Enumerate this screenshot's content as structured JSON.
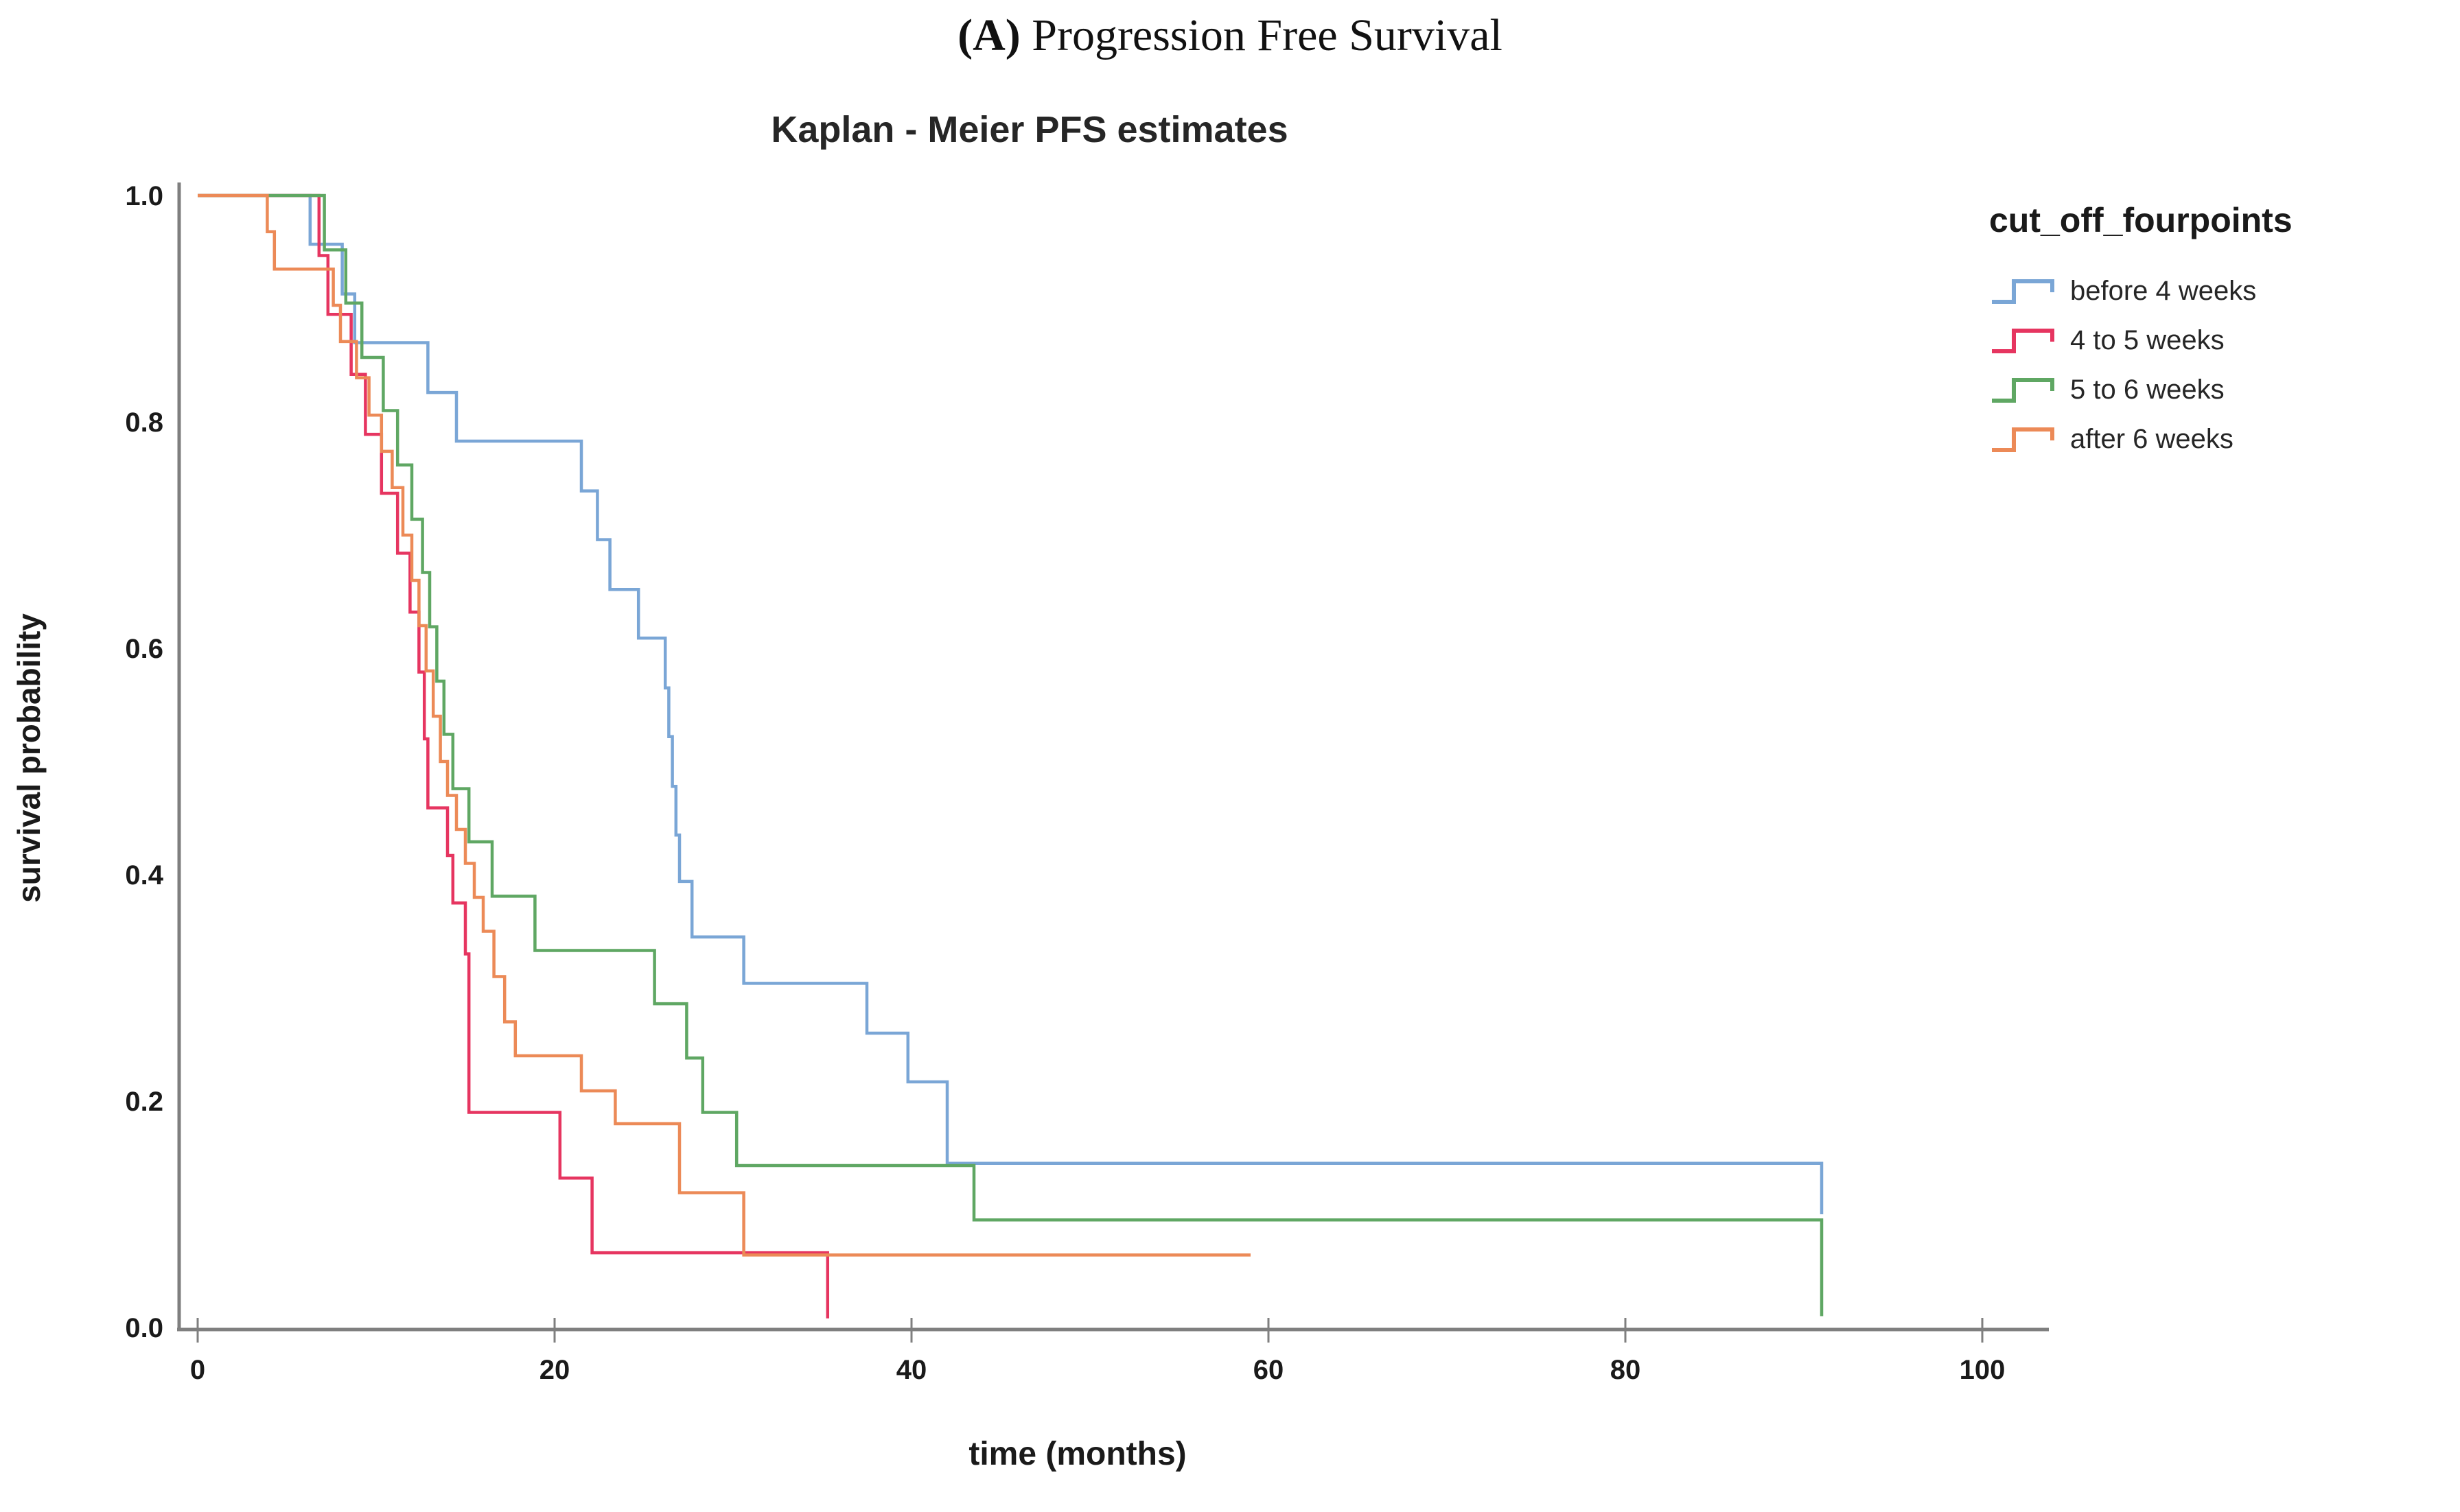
{
  "figure": {
    "title_prefix": "(A)",
    "title_rest": " Progression Free Survival"
  },
  "chart_data": {
    "type": "line",
    "subtype": "kaplan-meier-step-curves",
    "title": "Kaplan - Meier PFS estimates",
    "xlabel": "time (months)",
    "ylabel": "survival probability",
    "xlim": [
      0,
      100
    ],
    "ylim": [
      0.0,
      1.0
    ],
    "x_ticks": [
      0,
      20,
      40,
      60,
      80,
      100
    ],
    "y_ticks": [
      1.0,
      0.8,
      0.6,
      0.4,
      0.2,
      0.0
    ],
    "grid": false,
    "legend_title": "cut_off_fourpoints",
    "legend_position": "right",
    "series": [
      {
        "name": "before 4 weeks",
        "color": "#7AA6D6",
        "steps": [
          [
            0,
            1.0
          ],
          [
            6.3,
            0.957
          ],
          [
            8.1,
            0.913
          ],
          [
            8.8,
            0.87
          ],
          [
            12.9,
            0.826
          ],
          [
            14.5,
            0.783
          ],
          [
            21.5,
            0.739
          ],
          [
            22.4,
            0.696
          ],
          [
            23.1,
            0.652
          ],
          [
            24.7,
            0.609
          ],
          [
            26.2,
            0.565
          ],
          [
            26.4,
            0.522
          ],
          [
            26.6,
            0.478
          ],
          [
            26.8,
            0.435
          ],
          [
            27.0,
            0.394
          ],
          [
            27.7,
            0.345
          ],
          [
            30.6,
            0.304
          ],
          [
            37.5,
            0.26
          ],
          [
            39.8,
            0.217
          ],
          [
            42.0,
            0.145
          ],
          [
            91.0,
            0.1
          ]
        ]
      },
      {
        "name": "4 to 5 weeks",
        "color": "#E63560",
        "steps": [
          [
            0,
            1.0
          ],
          [
            6.8,
            0.947
          ],
          [
            7.3,
            0.895
          ],
          [
            8.6,
            0.842
          ],
          [
            9.4,
            0.789
          ],
          [
            10.3,
            0.737
          ],
          [
            11.2,
            0.684
          ],
          [
            11.9,
            0.632
          ],
          [
            12.4,
            0.579
          ],
          [
            12.7,
            0.52
          ],
          [
            12.9,
            0.459
          ],
          [
            14.0,
            0.417
          ],
          [
            14.3,
            0.375
          ],
          [
            15.0,
            0.33
          ],
          [
            15.2,
            0.19
          ],
          [
            20.3,
            0.132
          ],
          [
            22.1,
            0.066
          ],
          [
            35.3,
            0.008
          ]
        ]
      },
      {
        "name": "5 to 6 weeks",
        "color": "#5FA763",
        "steps": [
          [
            0,
            1.0
          ],
          [
            7.1,
            0.952
          ],
          [
            8.3,
            0.905
          ],
          [
            9.2,
            0.857
          ],
          [
            10.4,
            0.81
          ],
          [
            11.2,
            0.762
          ],
          [
            12.0,
            0.714
          ],
          [
            12.6,
            0.667
          ],
          [
            13.0,
            0.619
          ],
          [
            13.4,
            0.571
          ],
          [
            13.8,
            0.524
          ],
          [
            14.3,
            0.476
          ],
          [
            15.2,
            0.429
          ],
          [
            16.5,
            0.381
          ],
          [
            18.9,
            0.333
          ],
          [
            25.6,
            0.286
          ],
          [
            27.4,
            0.238
          ],
          [
            28.3,
            0.19
          ],
          [
            30.2,
            0.143
          ],
          [
            43.5,
            0.095
          ],
          [
            91.0,
            0.01
          ]
        ]
      },
      {
        "name": "after 6 weeks",
        "color": "#EC8A57",
        "steps": [
          [
            0,
            1.0
          ],
          [
            3.9,
            0.968
          ],
          [
            4.3,
            0.935
          ],
          [
            7.6,
            0.903
          ],
          [
            8.0,
            0.871
          ],
          [
            8.9,
            0.839
          ],
          [
            9.6,
            0.806
          ],
          [
            10.3,
            0.774
          ],
          [
            10.9,
            0.742
          ],
          [
            11.5,
            0.7
          ],
          [
            12.0,
            0.66
          ],
          [
            12.4,
            0.62
          ],
          [
            12.8,
            0.58
          ],
          [
            13.2,
            0.54
          ],
          [
            13.6,
            0.5
          ],
          [
            14.0,
            0.47
          ],
          [
            14.5,
            0.44
          ],
          [
            15.0,
            0.41
          ],
          [
            15.5,
            0.38
          ],
          [
            16.0,
            0.35
          ],
          [
            16.6,
            0.31
          ],
          [
            17.2,
            0.27
          ],
          [
            17.8,
            0.24
          ],
          [
            21.5,
            0.209
          ],
          [
            23.4,
            0.18
          ],
          [
            27.0,
            0.119
          ],
          [
            30.6,
            0.064
          ],
          [
            59.0,
            0.064
          ]
        ]
      }
    ]
  },
  "style": {
    "axis_color": "#7F7F7F",
    "text_color": "#1A1A1A",
    "curve_width": 4.5
  }
}
